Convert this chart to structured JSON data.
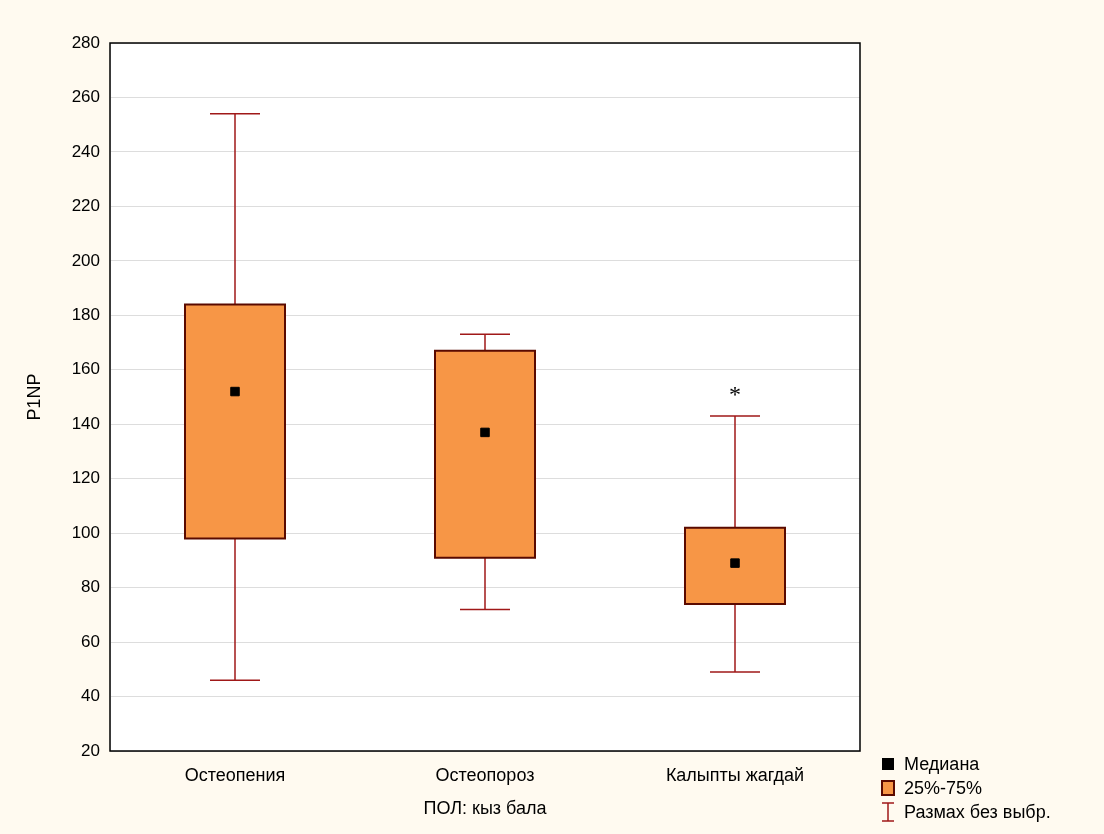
{
  "chart_data": {
    "type": "box",
    "categories": [
      "Остеопения",
      "Остеопороз",
      "Калыпты жагдай"
    ],
    "xlabel": "ПОЛ: кыз бала",
    "ylabel": "P1NP",
    "ylim": [
      20,
      280
    ],
    "yticks": [
      20,
      40,
      60,
      80,
      100,
      120,
      140,
      160,
      180,
      200,
      220,
      240,
      260,
      280
    ],
    "grid": "y",
    "series": [
      {
        "color": "#f79646",
        "boxes": [
          {
            "low": 46,
            "q1": 98,
            "median": 152,
            "q3": 184,
            "high": 254
          },
          {
            "low": 72,
            "q1": 91,
            "median": 137,
            "q3": 167,
            "high": 173
          },
          {
            "low": 49,
            "q1": 74,
            "median": 89,
            "q3": 102,
            "high": 143
          }
        ]
      }
    ],
    "annotations": [
      "*",
      "Медиана",
      "25%-75%",
      "Размах без выбр."
    ]
  }
}
